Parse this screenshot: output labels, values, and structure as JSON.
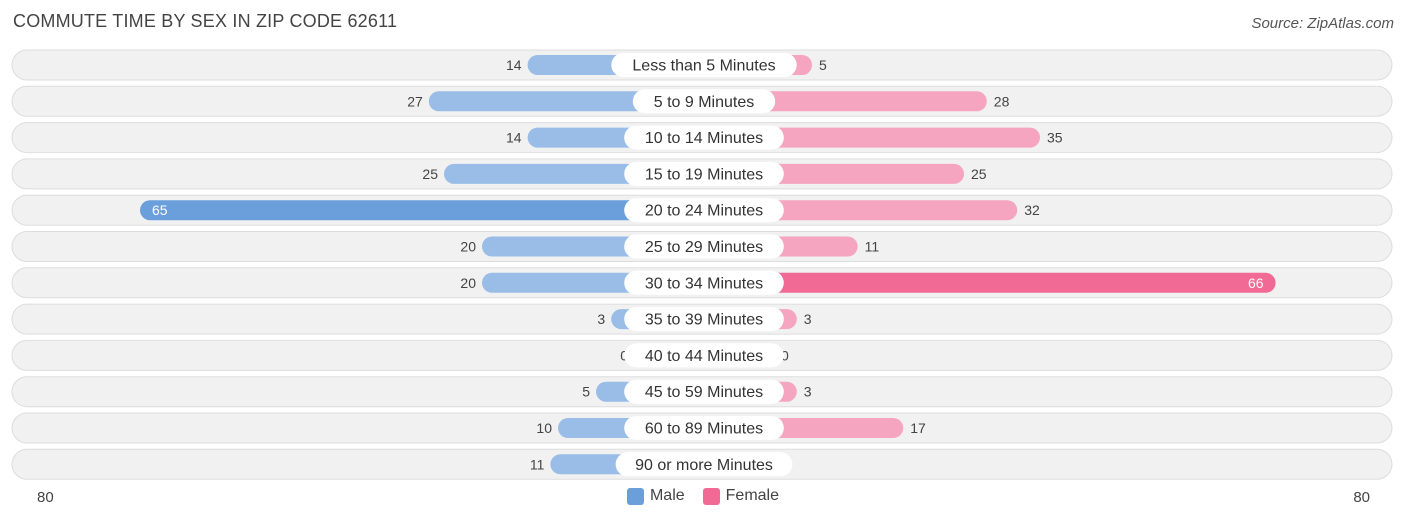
{
  "title": "COMMUTE TIME BY SEX IN ZIP CODE 62611",
  "source": "Source: ZipAtlas.com",
  "colors": {
    "male": "#99bde6",
    "male_strong": "#6a9fdc",
    "female": "#f5a5c0",
    "female_strong": "#f06a95",
    "row_bg": "#f1f1f1",
    "row_border": "#dddddd"
  },
  "axis": {
    "left_label": "80",
    "right_label": "80"
  },
  "legend": [
    {
      "label": "Male",
      "color": "#6a9fdc"
    },
    {
      "label": "Female",
      "color": "#f06a95"
    }
  ],
  "chart_data": {
    "type": "bar",
    "orientation": "horizontal-diverging",
    "title": "COMMUTE TIME BY SEX IN ZIP CODE 62611",
    "categories": [
      "Less than 5 Minutes",
      "5 to 9 Minutes",
      "10 to 14 Minutes",
      "15 to 19 Minutes",
      "20 to 24 Minutes",
      "25 to 29 Minutes",
      "30 to 34 Minutes",
      "35 to 39 Minutes",
      "40 to 44 Minutes",
      "45 to 59 Minutes",
      "60 to 89 Minutes",
      "90 or more Minutes"
    ],
    "series": [
      {
        "name": "Male",
        "values": [
          14,
          27,
          14,
          25,
          65,
          20,
          20,
          3,
          0,
          5,
          10,
          11
        ]
      },
      {
        "name": "Female",
        "values": [
          5,
          28,
          35,
          25,
          32,
          11,
          66,
          3,
          0,
          3,
          17,
          0
        ]
      }
    ],
    "xlim": [
      -80,
      80
    ],
    "legend_position": "bottom-center",
    "grid": false
  }
}
